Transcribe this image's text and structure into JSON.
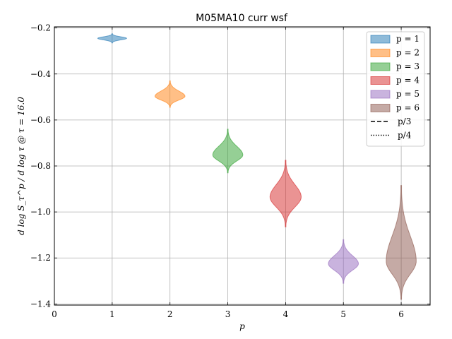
{
  "chart_data": {
    "type": "violin",
    "title": "M05MA10 curr wsf",
    "xlabel": "p",
    "ylabel": "d log S_τ^p / d log τ @ τ = 16.0",
    "xlim": [
      0,
      6.5
    ],
    "ylim": [
      -1.405,
      -0.195
    ],
    "xticks": [
      0,
      1,
      2,
      3,
      4,
      5,
      6
    ],
    "xtick_labels": [
      "0",
      "1",
      "2",
      "3",
      "4",
      "5",
      "6"
    ],
    "yticks": [
      -1.4,
      -1.2,
      -1.0,
      -0.8,
      -0.6,
      -0.4,
      -0.2
    ],
    "ytick_labels": [
      "−1.4",
      "−1.2",
      "−1.0",
      "−0.8",
      "−0.6",
      "−0.4",
      "−0.2"
    ],
    "grid": true,
    "legend_position": "top-right",
    "series": [
      {
        "name": "p = 1",
        "x": 1,
        "center": -0.245,
        "min": -0.265,
        "max": -0.225,
        "halfwidth": 0.25,
        "color": "#1f77b4"
      },
      {
        "name": "p = 2",
        "x": 2,
        "center": -0.497,
        "min": -0.545,
        "max": -0.43,
        "halfwidth": 0.26,
        "color": "#ff7f0e"
      },
      {
        "name": "p = 3",
        "x": 3,
        "center": -0.752,
        "min": -0.83,
        "max": -0.64,
        "halfwidth": 0.26,
        "color": "#2ca02c"
      },
      {
        "name": "p = 4",
        "x": 4,
        "center": -0.935,
        "min": -1.065,
        "max": -0.775,
        "halfwidth": 0.27,
        "color": "#d62728"
      },
      {
        "name": "p = 5",
        "x": 5,
        "center": -1.225,
        "min": -1.31,
        "max": -1.12,
        "halfwidth": 0.26,
        "color": "#9467bd"
      },
      {
        "name": "p = 6",
        "x": 6,
        "center": -1.215,
        "min": -1.38,
        "max": -0.885,
        "halfwidth": 0.26,
        "color": "#8c564b"
      }
    ],
    "legend_lines": [
      {
        "name": "p/3",
        "style": "dashed"
      },
      {
        "name": "p/4",
        "style": "dotted"
      }
    ]
  }
}
